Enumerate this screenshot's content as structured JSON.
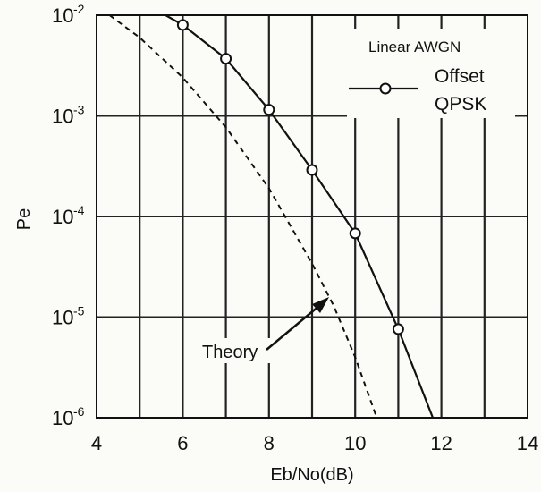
{
  "chart_data": {
    "type": "line",
    "xlabel": "Eb/No(dB)",
    "ylabel": "Pe",
    "xlim": [
      4,
      14
    ],
    "ylim": [
      1e-06,
      0.01
    ],
    "yscale": "log",
    "grid": true,
    "x_ticks": [
      "4",
      "6",
      "8",
      "10",
      "12",
      "14"
    ],
    "y_ticks": [
      {
        "base": "10",
        "exp": "-2"
      },
      {
        "base": "10",
        "exp": "-3"
      },
      {
        "base": "10",
        "exp": "-4"
      },
      {
        "base": "10",
        "exp": "-5"
      },
      {
        "base": "10",
        "exp": "-6"
      }
    ],
    "legend": {
      "title": "Linear AWGN",
      "entry_line1": "Offset",
      "entry_line2": "QPSK",
      "placement": "top-right"
    },
    "annotation": "Theory",
    "series": [
      {
        "name": "Offset QPSK",
        "style": "solid-with-circles",
        "x": [
          6,
          7,
          8,
          9,
          10,
          11
        ],
        "y": [
          0.008,
          0.0037,
          0.00115,
          0.00029,
          6.8e-05,
          7.6e-06
        ],
        "curve_x": [
          5.6,
          6,
          7,
          8,
          9,
          10,
          11,
          11.8
        ],
        "curve_y": [
          0.01,
          0.008,
          0.0037,
          0.00115,
          0.00029,
          6.8e-05,
          7.6e-06,
          1e-06
        ]
      },
      {
        "name": "Theory",
        "style": "dashed",
        "x": [
          4.3,
          5,
          6,
          7,
          8,
          9,
          9.5,
          10,
          10.5
        ],
        "y": [
          0.01,
          0.006,
          0.0024,
          0.00077,
          0.00019,
          3.4e-05,
          1.3e-05,
          4e-06,
          1e-06
        ]
      }
    ],
    "colors": {
      "line": "#111111",
      "grid": "#222222",
      "marker_fill": "#ffffff"
    }
  }
}
